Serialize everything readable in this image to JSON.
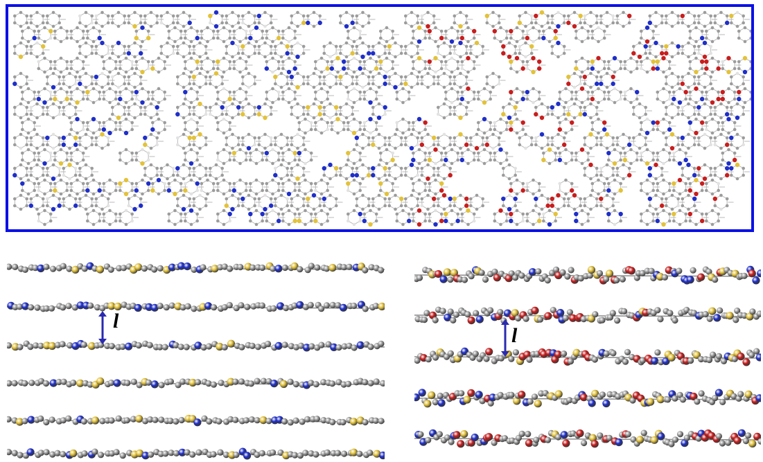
{
  "figure": {
    "spacing_label_left": "l",
    "spacing_label_right": "l",
    "frame_color": "#0a10e6",
    "arrow_color": "#2a2ab0"
  },
  "atoms": {
    "carbon": "#9c9c9c",
    "nitrogen": "#1f2fc9",
    "sulfur": "#e3c23a",
    "oxygen": "#c81e1e",
    "hydrogen": "#e2e2e2"
  },
  "panels": {
    "top": {
      "view": "top-view-network",
      "icon": "molecular-network"
    },
    "left_stack": {
      "layers": 6,
      "icon": "stacked-layers"
    },
    "right_stack": {
      "layers": 5,
      "icon": "stacked-layers"
    }
  }
}
